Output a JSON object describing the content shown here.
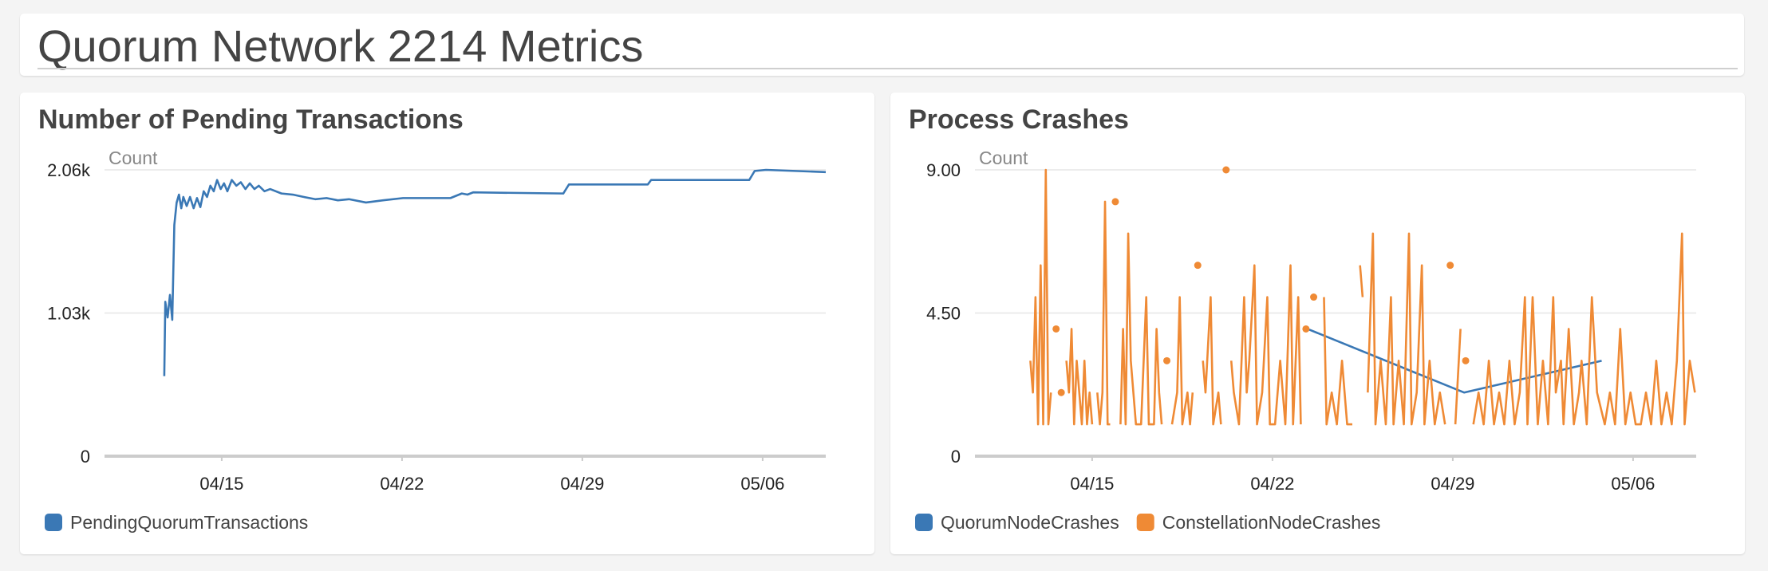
{
  "header": {
    "title": "Quorum Network 2214 Metrics"
  },
  "chart_data": [
    {
      "type": "line",
      "title": "Number of Pending Transactions",
      "y_label": "Count",
      "x": [
        12.77,
        12.81,
        12.9,
        12.99,
        13.08,
        13.16,
        13.25,
        13.34,
        13.43,
        13.51,
        13.64,
        13.77,
        13.91,
        14.04,
        14.17,
        14.3,
        14.43,
        14.56,
        14.69,
        14.82,
        14.96,
        15.09,
        15.22,
        15.39,
        15.57,
        15.74,
        15.92,
        16.09,
        16.27,
        16.44,
        16.66,
        16.88,
        17.32,
        17.76,
        18.19,
        18.63,
        19.07,
        19.51,
        19.94,
        20.6,
        21.26,
        22.04,
        23.88,
        24.32,
        24.54,
        24.76,
        28.26,
        28.48,
        31.54,
        31.67,
        35.48,
        35.69,
        36.13,
        38.45
      ],
      "series": [
        {
          "name": "PendingQuorumTransactions",
          "color": "#3a78b5",
          "values": [
            576,
            1111,
            998,
            1160,
            981,
            1663,
            1825,
            1882,
            1784,
            1865,
            1800,
            1865,
            1784,
            1857,
            1792,
            1906,
            1865,
            1946,
            1906,
            1987,
            1922,
            1963,
            1906,
            1987,
            1946,
            1971,
            1922,
            1963,
            1922,
            1946,
            1906,
            1922,
            1890,
            1882,
            1865,
            1849,
            1857,
            1841,
            1849,
            1825,
            1841,
            1857,
            1857,
            1890,
            1882,
            1898,
            1890,
            1955,
            1955,
            1987,
            1987,
            2052,
            2060,
            2044
          ]
        }
      ],
      "xlim": [
        10.45,
        38.45
      ],
      "xticks": [
        {
          "value": 15,
          "label": "04/15"
        },
        {
          "value": 22,
          "label": "04/22"
        },
        {
          "value": 29,
          "label": "04/29"
        },
        {
          "value": 36,
          "label": "05/06"
        }
      ],
      "ylim": [
        0,
        2060
      ],
      "yticks": [
        0,
        {
          "value": 1030,
          "label": "1.03k"
        },
        {
          "value": 2060,
          "label": "2.06k"
        }
      ],
      "grid": true,
      "legend": "bottom"
    },
    {
      "type": "line",
      "title": "Process Crashes",
      "y_label": "Count",
      "x": [
        12.6,
        12.7,
        12.8,
        12.9,
        13.0,
        13.1,
        13.2,
        13.3,
        13.4,
        13.5,
        13.6,
        13.7,
        13.8,
        13.9,
        14.0,
        14.1,
        14.2,
        14.3,
        14.4,
        14.5,
        14.6,
        14.7,
        14.8,
        14.9,
        15.0,
        15.1,
        15.2,
        15.3,
        15.4,
        15.5,
        15.6,
        15.7,
        15.8,
        15.9,
        16.0,
        16.1,
        16.2,
        16.3,
        16.4,
        16.5,
        16.6,
        16.7,
        16.9,
        17.1,
        17.2,
        17.4,
        17.5,
        17.6,
        17.7,
        17.8,
        17.9,
        18.0,
        18.1,
        18.3,
        18.4,
        18.5,
        18.7,
        18.8,
        18.9,
        19.0,
        19.1,
        19.2,
        19.3,
        19.4,
        19.6,
        19.7,
        19.9,
        20.0,
        20.1,
        20.2,
        20.3,
        20.4,
        20.5,
        20.7,
        20.9,
        21.0,
        21.1,
        21.3,
        21.4,
        21.6,
        21.8,
        21.9,
        22.1,
        22.3,
        22.5,
        22.7,
        22.8,
        23.0,
        23.1,
        23.2,
        23.3,
        23.45,
        23.6,
        23.7,
        24.0,
        24.1,
        24.3,
        24.5,
        24.7,
        24.9,
        25.1,
        25.3,
        25.4,
        25.5,
        25.6,
        25.7,
        25.9,
        26.0,
        26.2,
        26.4,
        26.6,
        26.7,
        26.9,
        27.1,
        27.3,
        27.4,
        27.6,
        27.8,
        27.9,
        28.1,
        28.3,
        28.5,
        28.7,
        28.8,
        28.9,
        29.0,
        29.1,
        29.3,
        29.4,
        29.5,
        29.6,
        29.8,
        30.0,
        30.2,
        30.4,
        30.6,
        30.8,
        31.0,
        31.2,
        31.4,
        31.6,
        31.8,
        31.9,
        32.1,
        32.3,
        32.5,
        32.7,
        32.9,
        33.0,
        33.2,
        33.3,
        33.5,
        33.7,
        33.9,
        34.0,
        34.2,
        34.4,
        34.6,
        34.9,
        35.1,
        35.3,
        35.5,
        35.7,
        35.9,
        36.1,
        36.3,
        36.5,
        36.7,
        36.9,
        37.1,
        37.3,
        37.5,
        37.7,
        37.9,
        38.0,
        38.2,
        38.4
      ],
      "series": [
        {
          "name": "QuorumNodeCrashes",
          "color": "#3a78b5",
          "x": [
            23.36,
            29.44,
            34.78
          ],
          "values": [
            4,
            2,
            3
          ]
        },
        {
          "name": "ConstellationNodeCrashes",
          "color": "#ef8a35",
          "values": [
            3,
            2,
            5,
            1,
            6,
            1,
            9,
            1,
            2,
            null,
            4,
            null,
            2,
            null,
            3,
            2,
            4,
            1,
            3,
            2,
            1,
            3,
            1,
            2,
            1,
            null,
            2,
            1,
            2,
            8,
            1,
            1,
            null,
            8,
            null,
            1,
            4,
            1,
            7,
            3,
            2,
            1,
            1,
            5,
            1,
            1,
            4,
            2,
            1,
            null,
            3,
            null,
            1,
            2,
            5,
            1,
            2,
            1,
            2,
            null,
            6,
            null,
            3,
            2,
            5,
            1,
            2,
            1,
            null,
            9,
            null,
            3,
            2,
            1,
            5,
            2,
            3,
            6,
            1,
            2,
            5,
            1,
            1,
            3,
            1,
            6,
            1,
            5,
            1,
            null,
            4,
            null,
            5,
            null,
            5,
            1,
            2,
            1,
            3,
            1,
            1,
            null,
            6,
            5,
            null,
            2,
            7,
            1,
            3,
            1,
            5,
            1,
            3,
            1,
            7,
            1,
            2,
            6,
            1,
            3,
            1,
            2,
            1,
            null,
            6,
            null,
            1,
            4,
            null,
            3,
            null,
            1,
            2,
            1,
            3,
            1,
            2,
            1,
            3,
            1,
            2,
            5,
            1,
            5,
            1,
            3,
            1,
            5,
            2,
            3,
            1,
            4,
            1,
            2,
            3,
            1,
            5,
            2,
            1,
            2,
            1,
            4,
            1,
            2,
            1,
            1,
            2,
            1,
            3,
            1,
            2,
            1,
            3,
            7,
            1,
            3,
            2
          ]
        }
      ],
      "xlim": [
        10.45,
        38.45
      ],
      "xticks": [
        {
          "value": 15,
          "label": "04/15"
        },
        {
          "value": 22,
          "label": "04/22"
        },
        {
          "value": 29,
          "label": "04/29"
        },
        {
          "value": 36,
          "label": "05/06"
        }
      ],
      "ylim": [
        0,
        9
      ],
      "yticks": [
        0,
        {
          "value": 4.5,
          "label": "4.50"
        },
        {
          "value": 9,
          "label": "9.00"
        }
      ],
      "grid": true,
      "legend": "bottom"
    }
  ]
}
